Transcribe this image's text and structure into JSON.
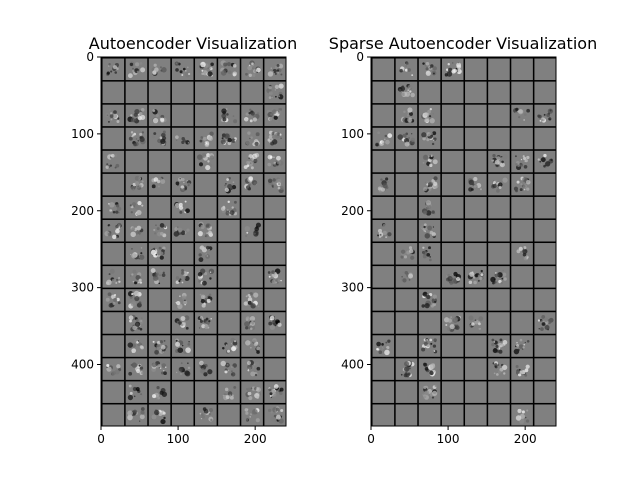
{
  "chart_data": [
    {
      "type": "heatmap",
      "title": "Autoencoder Visualization",
      "grid": {
        "rows": 16,
        "cols": 8,
        "tile_px": 28,
        "separator_px": 2
      },
      "x_ticks": [
        0,
        100,
        200
      ],
      "y_ticks": [
        0,
        100,
        200,
        300,
        400
      ],
      "xlim": [
        0,
        240
      ],
      "ylim": [
        480,
        0
      ],
      "colormap": "gray",
      "active_tiles": [
        [
          1,
          1,
          1,
          1,
          1,
          1,
          1,
          1
        ],
        [
          0,
          0,
          0,
          0,
          0,
          0,
          0,
          1
        ],
        [
          1,
          1,
          1,
          0,
          0,
          1,
          1,
          1
        ],
        [
          0,
          1,
          1,
          1,
          1,
          1,
          1,
          1
        ],
        [
          1,
          0,
          0,
          0,
          1,
          0,
          1,
          1
        ],
        [
          0,
          1,
          1,
          1,
          0,
          1,
          1,
          1
        ],
        [
          1,
          1,
          0,
          1,
          0,
          1,
          0,
          0
        ],
        [
          1,
          1,
          1,
          1,
          1,
          0,
          1,
          0
        ],
        [
          0,
          1,
          1,
          0,
          1,
          0,
          0,
          0
        ],
        [
          1,
          1,
          1,
          1,
          1,
          0,
          0,
          1
        ],
        [
          1,
          1,
          0,
          1,
          1,
          0,
          1,
          0
        ],
        [
          0,
          1,
          0,
          1,
          1,
          0,
          1,
          1
        ],
        [
          0,
          1,
          1,
          1,
          0,
          1,
          1,
          0
        ],
        [
          1,
          1,
          1,
          1,
          1,
          1,
          1,
          0
        ],
        [
          0,
          1,
          1,
          0,
          0,
          1,
          1,
          1
        ],
        [
          0,
          1,
          1,
          0,
          1,
          0,
          1,
          1
        ]
      ]
    },
    {
      "type": "heatmap",
      "title": "Sparse Autoencoder Visualization",
      "grid": {
        "rows": 16,
        "cols": 8,
        "tile_px": 28,
        "separator_px": 2
      },
      "x_ticks": [
        0,
        100,
        200
      ],
      "y_ticks": [
        0,
        100,
        200,
        300,
        400
      ],
      "xlim": [
        0,
        240
      ],
      "ylim": [
        480,
        0
      ],
      "colormap": "gray",
      "active_tiles": [
        [
          0,
          1,
          1,
          1,
          0,
          0,
          0,
          0
        ],
        [
          0,
          1,
          0,
          0,
          0,
          0,
          0,
          0
        ],
        [
          0,
          1,
          1,
          0,
          0,
          0,
          1,
          1
        ],
        [
          1,
          1,
          1,
          0,
          0,
          0,
          0,
          0
        ],
        [
          0,
          0,
          1,
          0,
          0,
          1,
          1,
          1
        ],
        [
          1,
          0,
          1,
          0,
          1,
          1,
          1,
          0
        ],
        [
          0,
          0,
          1,
          0,
          0,
          0,
          0,
          0
        ],
        [
          1,
          0,
          1,
          0,
          0,
          0,
          0,
          0
        ],
        [
          0,
          1,
          1,
          0,
          0,
          0,
          1,
          0
        ],
        [
          0,
          1,
          0,
          1,
          1,
          1,
          0,
          0
        ],
        [
          0,
          0,
          1,
          0,
          0,
          0,
          0,
          0
        ],
        [
          0,
          0,
          0,
          1,
          1,
          0,
          0,
          1
        ],
        [
          1,
          0,
          1,
          0,
          0,
          1,
          1,
          0
        ],
        [
          0,
          1,
          1,
          0,
          0,
          1,
          1,
          0
        ],
        [
          0,
          0,
          1,
          0,
          0,
          0,
          0,
          0
        ],
        [
          0,
          0,
          0,
          0,
          0,
          0,
          1,
          0
        ]
      ]
    }
  ]
}
